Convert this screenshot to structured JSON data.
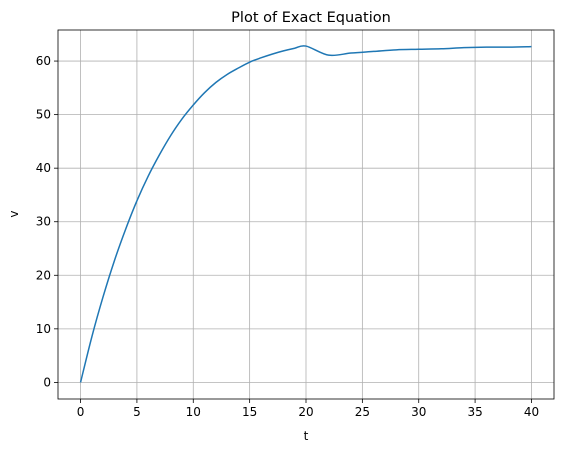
{
  "chart_data": {
    "type": "line",
    "title": "Plot of Exact Equation",
    "xlabel": "t",
    "ylabel": "v",
    "xlim": [
      -2,
      42
    ],
    "ylim": [
      -3.1,
      65.8
    ],
    "xticks": [
      0,
      5,
      10,
      15,
      20,
      25,
      30,
      35,
      40
    ],
    "yticks": [
      0,
      10,
      20,
      30,
      40,
      50,
      60
    ],
    "grid": true,
    "color": "#1f77b4",
    "series": [
      {
        "x": [
          0,
          1,
          2,
          3,
          4,
          5,
          6,
          7,
          8,
          9,
          10,
          11,
          12,
          13,
          14,
          15,
          16,
          17,
          18,
          19,
          20,
          22,
          24,
          26,
          28,
          30,
          32,
          34,
          36,
          38,
          40
        ],
        "values": [
          0,
          8.5,
          16.0,
          22.7,
          28.6,
          33.9,
          38.5,
          42.5,
          46.1,
          49.2,
          51.8,
          54.1,
          56.0,
          57.5,
          58.7,
          59.8,
          60.6,
          61.3,
          61.9,
          62.4,
          62.8,
          61.1,
          61.5,
          61.8,
          62.1,
          62.2,
          62.3,
          62.5,
          62.6,
          62.6,
          62.7
        ]
      }
    ]
  }
}
